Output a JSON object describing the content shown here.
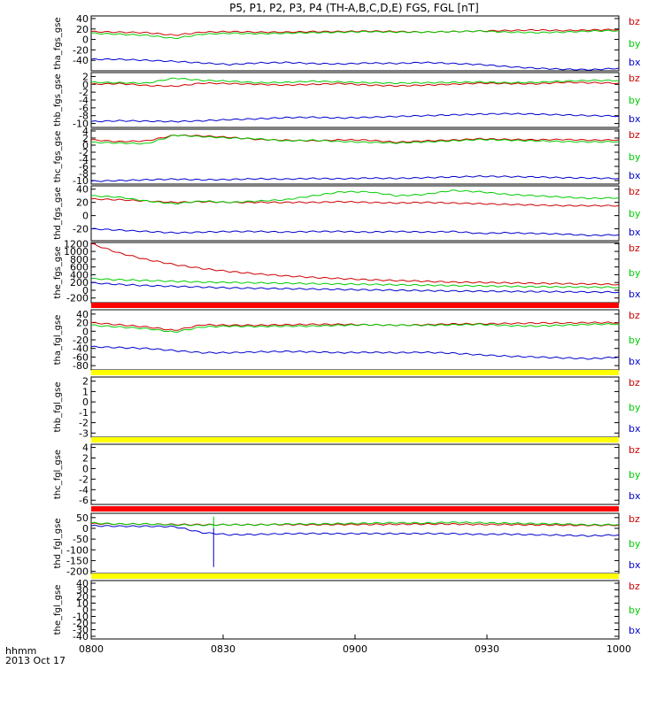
{
  "chart_data": {
    "type": "line",
    "title": "P5, P1, P2, P3, P4 (TH-A,B,C,D,E) FGS, FGL [nT]",
    "x_ticks": [
      "0800",
      "0830",
      "0900",
      "0930",
      "1000"
    ],
    "x_corner_label_1": "hhmm",
    "x_corner_label_2": "2013 Oct 17",
    "x_range": [
      "08:00",
      "10:00"
    ],
    "colors": {
      "bz": "#cc0000",
      "by": "#00cc00",
      "bx": "#0000cc",
      "bar_red": "#ff0000",
      "bar_yellow": "#ffff00"
    },
    "panels": [
      {
        "ylabel": "tha_fgs_gse",
        "ylim": [
          -60,
          45
        ],
        "yticks": [
          "40",
          "20",
          "0",
          "-20",
          "-40"
        ],
        "legend": [
          "bz",
          "by",
          "bx"
        ],
        "series": [
          {
            "name": "bz",
            "values": [
              15,
              14,
              13,
              8,
              14,
              15,
              14,
              14,
              15,
              15,
              16,
              15,
              14,
              15,
              16,
              17,
              18,
              17,
              18,
              19
            ]
          },
          {
            "name": "by",
            "values": [
              12,
              10,
              8,
              2,
              10,
              12,
              11,
              12,
              13,
              14,
              15,
              14,
              14,
              15,
              16,
              14,
              13,
              14,
              16,
              17
            ]
          },
          {
            "name": "bx",
            "values": [
              -38,
              -38,
              -40,
              -42,
              -45,
              -48,
              -45,
              -44,
              -46,
              -47,
              -45,
              -46,
              -44,
              -46,
              -48,
              -52,
              -55,
              -57,
              -58,
              -55
            ]
          }
        ]
      },
      {
        "ylabel": "thb_fgs_gse",
        "ylim": [
          -11,
          3
        ],
        "yticks": [
          "2",
          "0",
          "-2",
          "-4",
          "-6",
          "-8",
          "-10"
        ],
        "legend": [
          "bz",
          "by",
          "bx"
        ],
        "series": [
          {
            "name": "bz",
            "values": [
              0,
              0.2,
              -0.3,
              -0.5,
              0.3,
              0.2,
              0,
              -0.2,
              0,
              0.2,
              -0.2,
              -0.4,
              -0.2,
              0,
              0.3,
              0.2,
              0.1,
              0.5,
              0.4,
              0.3
            ]
          },
          {
            "name": "by",
            "values": [
              0.5,
              0.4,
              0.3,
              1.6,
              1.0,
              0.8,
              0.4,
              0.5,
              0.8,
              0.6,
              0.4,
              0.3,
              0.4,
              0.5,
              0.6,
              0.4,
              0.5,
              0.8,
              1,
              1
            ]
          },
          {
            "name": "bx",
            "values": [
              -9.5,
              -9.3,
              -9.4,
              -9.5,
              -9.3,
              -9,
              -8.8,
              -8.5,
              -8.4,
              -8.6,
              -8.4,
              -8.2,
              -8.0,
              -7.8,
              -7.6,
              -7.5,
              -7.6,
              -7.8,
              -8.0,
              -8.1
            ]
          }
        ]
      },
      {
        "ylabel": "thc_fgs_gse",
        "ylim": [
          -11,
          4.5
        ],
        "yticks": [
          "4",
          "2",
          "0",
          "-2",
          "-4",
          "-6",
          "-8",
          "-10"
        ],
        "legend": [
          "bz",
          "by",
          "bx"
        ],
        "series": [
          {
            "name": "bz",
            "values": [
              1.5,
              1.0,
              1.2,
              2.8,
              2.6,
              2.2,
              1.6,
              1.4,
              1.2,
              1.5,
              1.4,
              0.8,
              1.2,
              1.4,
              1.8,
              1.6,
              1.5,
              1.6,
              1.4,
              1.5
            ]
          },
          {
            "name": "by",
            "values": [
              0.8,
              0.6,
              0.4,
              2.8,
              2.4,
              2.0,
              1.8,
              1.2,
              1.4,
              1.0,
              0.8,
              0.6,
              0.9,
              1.2,
              1.6,
              1.4,
              1.2,
              1.0,
              0.9,
              1.0
            ]
          },
          {
            "name": "bx",
            "values": [
              -10.2,
              -10.0,
              -9.8,
              -9.6,
              -9.8,
              -9.7,
              -9.5,
              -9.6,
              -9.4,
              -9.5,
              -9.3,
              -9.4,
              -9.2,
              -9.0,
              -8.8,
              -8.9,
              -9.0,
              -9.2,
              -9.3,
              -9.4
            ]
          }
        ]
      },
      {
        "ylabel": "thd_fgs_gse",
        "ylim": [
          -38,
          45
        ],
        "yticks": [
          "40",
          "20",
          "0",
          "-20"
        ],
        "legend": [
          "bz",
          "by",
          "bx"
        ],
        "series": [
          {
            "name": "bz",
            "values": [
              25,
              24,
              22,
              20,
              21,
              20,
              20,
              20,
              20,
              21,
              20,
              19,
              20,
              19,
              18,
              17,
              16,
              15,
              15,
              15
            ]
          },
          {
            "name": "by",
            "values": [
              30,
              28,
              22,
              18,
              22,
              20,
              22,
              24,
              30,
              36,
              36,
              30,
              32,
              38,
              36,
              32,
              30,
              28,
              26,
              27
            ]
          },
          {
            "name": "bx",
            "values": [
              -20,
              -22,
              -24,
              -26,
              -25,
              -24,
              -24,
              -25,
              -24,
              -24,
              -25,
              -24,
              -25,
              -24,
              -27,
              -26,
              -27,
              -28,
              -30,
              -29
            ]
          }
        ]
      },
      {
        "ylabel": "the_fgs_gse",
        "ylim": [
          -320,
          1230
        ],
        "yticks": [
          "1200",
          "1000",
          "800",
          "600",
          "400",
          "200",
          "0",
          "-200"
        ],
        "legend": [
          "bz",
          "by",
          "bx"
        ],
        "series": [
          {
            "name": "bz",
            "values": [
              1200,
              960,
              790,
              660,
              560,
              480,
              420,
              370,
              330,
              300,
              270,
              250,
              230,
              210,
              200,
              190,
              180,
              170,
              160,
              150
            ]
          },
          {
            "name": "by",
            "values": [
              300,
              270,
              250,
              230,
              210,
              200,
              190,
              180,
              170,
              160,
              150,
              140,
              130,
              120,
              110,
              100,
              90,
              85,
              80,
              75
            ]
          },
          {
            "name": "bx",
            "values": [
              190,
              150,
              120,
              100,
              80,
              60,
              50,
              40,
              30,
              20,
              10,
              0,
              -10,
              -20,
              -25,
              -30,
              -35,
              -40,
              -45,
              -50
            ]
          }
        ]
      },
      {
        "ylabel": "tha_fgl_gse",
        "ylim": [
          -90,
          50
        ],
        "yticks": [
          "40",
          "20",
          "0",
          "-20",
          "-40",
          "-60",
          "-80"
        ],
        "legend": [
          "bz",
          "by",
          "bx"
        ],
        "series": [
          {
            "name": "bz",
            "values": [
              20,
              15,
              10,
              2,
              15,
              14,
              14,
              15,
              16,
              16,
              15,
              14,
              15,
              17,
              17,
              18,
              19,
              19,
              20,
              20
            ]
          },
          {
            "name": "by",
            "values": [
              14,
              10,
              6,
              -2,
              10,
              12,
              11,
              12,
              12,
              14,
              15,
              14,
              14,
              15,
              16,
              13,
              12,
              14,
              16,
              17
            ]
          },
          {
            "name": "bx",
            "values": [
              -36,
              -38,
              -40,
              -45,
              -50,
              -50,
              -48,
              -47,
              -48,
              -50,
              -49,
              -50,
              -49,
              -51,
              -55,
              -58,
              -60,
              -62,
              -64,
              -60
            ]
          }
        ]
      },
      {
        "ylabel": "thb_fgl_gse",
        "ylim": [
          -3.4,
          2.4
        ],
        "yticks": [
          "2",
          "1",
          "0",
          "-1",
          "-2",
          "-3"
        ],
        "legend": [
          "bz",
          "by",
          "bx"
        ],
        "series": []
      },
      {
        "ylabel": "thc_fgl_gse",
        "ylim": [
          -6.8,
          4.6
        ],
        "yticks": [
          "4",
          "2",
          "0",
          "-2",
          "-4",
          "-6"
        ],
        "legend": [
          "bz",
          "by",
          "bx"
        ],
        "series": []
      },
      {
        "ylabel": "thd_fgl_gse",
        "ylim": [
          -210,
          70
        ],
        "yticks": [
          "50",
          "0",
          "-50",
          "-100",
          "-150",
          "-200"
        ],
        "legend": [
          "bz",
          "by",
          "bx"
        ],
        "series": [
          {
            "name": "bz",
            "values": [
              22,
              20,
              20,
              18,
              17,
              17,
              17,
              18,
              17,
              18,
              18,
              19,
              20,
              20,
              18,
              18,
              16,
              15,
              14,
              15
            ]
          },
          {
            "name": "by",
            "values": [
              25,
              20,
              20,
              16,
              15,
              17,
              16,
              20,
              20,
              22,
              24,
              26,
              24,
              28,
              26,
              24,
              22,
              20,
              16,
              18
            ]
          },
          {
            "name": "bx",
            "values": [
              12,
              10,
              10,
              8,
              -20,
              -30,
              -28,
              -25,
              -24,
              -25,
              -24,
              -25,
              -24,
              -25,
              -28,
              -27,
              -30,
              -32,
              -35,
              -30
            ]
          }
        ],
        "spike": {
          "x_fraction": 0.232,
          "values": [
            -180,
            55
          ]
        }
      },
      {
        "ylabel": "the_fgl_gse",
        "ylim": [
          -44,
          44
        ],
        "yticks": [
          "40",
          "30",
          "20",
          "10",
          "0",
          "-10",
          "-20",
          "-30",
          "-40"
        ],
        "legend": [
          "bz",
          "by",
          "bx"
        ],
        "series": []
      }
    ],
    "bars": [
      {
        "after_panel": 4,
        "color": "bar_red"
      },
      {
        "after_panel": 5,
        "color": "bar_yellow"
      },
      {
        "after_panel": 6,
        "color": "bar_yellow"
      },
      {
        "after_panel": 7,
        "color": "bar_red"
      },
      {
        "after_panel": 8,
        "color": "bar_yellow"
      }
    ]
  }
}
